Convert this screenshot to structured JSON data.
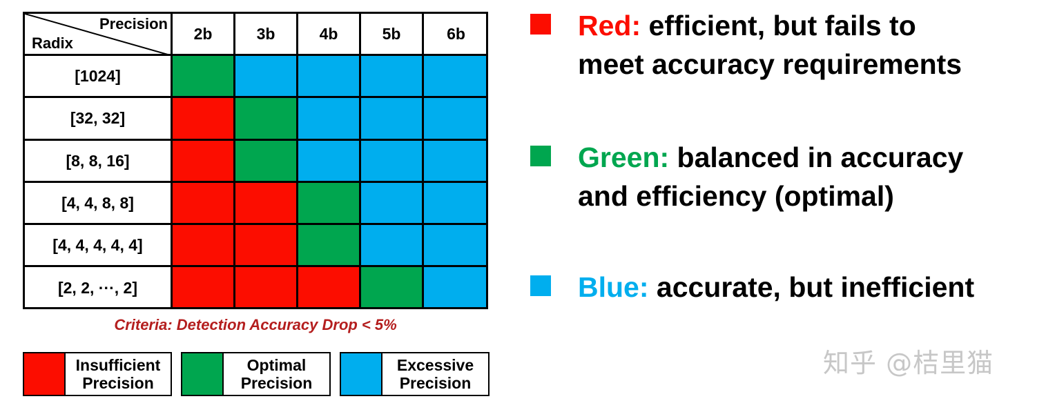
{
  "colors": {
    "insufficient": "#fc0d00",
    "optimal": "#00a64f",
    "excessive": "#00aeee",
    "criteria": "#b41e1e",
    "watermark": "#c7c7c7"
  },
  "table": {
    "corner_top": "Precision",
    "corner_bottom": "Radix",
    "columns": [
      "2b",
      "3b",
      "4b",
      "5b",
      "6b"
    ],
    "rows": [
      {
        "label": "[1024]",
        "cells": [
          "optimal",
          "excessive",
          "excessive",
          "excessive",
          "excessive"
        ]
      },
      {
        "label": "[32, 32]",
        "cells": [
          "insufficient",
          "optimal",
          "excessive",
          "excessive",
          "excessive"
        ]
      },
      {
        "label": "[8, 8, 16]",
        "cells": [
          "insufficient",
          "optimal",
          "excessive",
          "excessive",
          "excessive"
        ]
      },
      {
        "label": "[4, 4, 8, 8]",
        "cells": [
          "insufficient",
          "insufficient",
          "optimal",
          "excessive",
          "excessive"
        ]
      },
      {
        "label": "[4, 4, 4, 4, 4]",
        "cells": [
          "insufficient",
          "insufficient",
          "optimal",
          "excessive",
          "excessive"
        ]
      },
      {
        "label": "[2, 2, ···, 2]",
        "cells": [
          "insufficient",
          "insufficient",
          "insufficient",
          "optimal",
          "excessive"
        ]
      }
    ]
  },
  "criteria": "Criteria: Detection Accuracy Drop < 5%",
  "legend": [
    {
      "key": "insufficient",
      "label": "Insufficient\nPrecision"
    },
    {
      "key": "optimal",
      "label": "Optimal\nPrecision"
    },
    {
      "key": "excessive",
      "label": "Excessive\nPrecision"
    }
  ],
  "descriptions": {
    "red": {
      "keyword": "Red:",
      "line1": " efficient, but fails to",
      "line2": "meet accuracy requirements"
    },
    "green": {
      "keyword": "Green:",
      "line1": " balanced in accuracy",
      "line2": "and efficiency (optimal)"
    },
    "blue": {
      "keyword": "Blue:",
      "line1": " accurate, but inefficient",
      "line2": ""
    }
  },
  "watermark": "知乎 @桔里猫"
}
